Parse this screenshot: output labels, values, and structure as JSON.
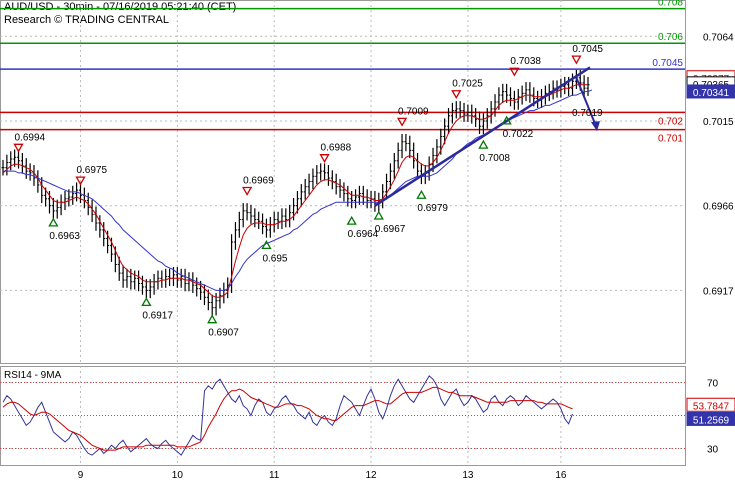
{
  "header": {
    "title": "AUD/USD - 30min - 07/16/2019 05:21:40 (CET)",
    "source": "Research © TRADING CENTRAL"
  },
  "colors": {
    "green_level": "#009900",
    "purple_level": "#3333cc",
    "red_level": "#cc0000",
    "price": "#000000",
    "ma_fast": "#cc0000",
    "ma_slow": "#3333cc",
    "trend": "#2a2a9a",
    "marker_up": "#007700",
    "marker_down": "#cc0000"
  },
  "chart_data": [
    {
      "type": "line",
      "title": "",
      "ylim": [
        0.6875,
        0.7085
      ],
      "x_ticks": [
        "9",
        "10",
        "11",
        "12",
        "13",
        "16"
      ],
      "y_ticks": [
        "0.7064",
        "0.7015",
        "0.6966",
        "0.6917"
      ],
      "levels": [
        {
          "value": 0.708,
          "label": "0.708",
          "color": "green"
        },
        {
          "value": 0.706,
          "label": "0.706",
          "color": "green"
        },
        {
          "value": 0.7045,
          "label": "0.7045",
          "color": "purple"
        },
        {
          "value": 0.702,
          "label": "0.702",
          "color": "red"
        },
        {
          "value": 0.701,
          "label": "0.701",
          "color": "red"
        }
      ],
      "price_tags": [
        {
          "value": 0.70377,
          "label": "0.70377",
          "style": "red"
        },
        {
          "value": 0.70365,
          "label": "0.70365",
          "style": "black"
        },
        {
          "value": 0.70341,
          "label": "0.70341",
          "style": "blue"
        }
      ],
      "annotations_high": [
        {
          "x": 4,
          "y": 0.6994,
          "label": "0.6994"
        },
        {
          "x": 20,
          "y": 0.6975,
          "label": "0.6975"
        },
        {
          "x": 63,
          "y": 0.6969,
          "label": "0.6969"
        },
        {
          "x": 83,
          "y": 0.6988,
          "label": "0.6988"
        },
        {
          "x": 103,
          "y": 0.7009,
          "label": "0.7009"
        },
        {
          "x": 117,
          "y": 0.7025,
          "label": "0.7025"
        },
        {
          "x": 132,
          "y": 0.7038,
          "label": "0.7038"
        },
        {
          "x": 148,
          "y": 0.7045,
          "label": "0.7045"
        }
      ],
      "annotations_low": [
        {
          "x": 13,
          "y": 0.6963,
          "label": "0.6963"
        },
        {
          "x": 37,
          "y": 0.6917,
          "label": "0.6917"
        },
        {
          "x": 54,
          "y": 0.6907,
          "label": "0.6907"
        },
        {
          "x": 68,
          "y": 0.695,
          "label": "0.695"
        },
        {
          "x": 90,
          "y": 0.6964,
          "label": "0.6964"
        },
        {
          "x": 97,
          "y": 0.6967,
          "label": "0.6967"
        },
        {
          "x": 108,
          "y": 0.6979,
          "label": "0.6979"
        },
        {
          "x": 124,
          "y": 0.7008,
          "label": "0.7008"
        },
        {
          "x": 130,
          "y": 0.7022,
          "label": "0.7022"
        }
      ],
      "projection_label": "0.7019",
      "series": [
        {
          "values": [
            0.6988,
            0.6991,
            0.6993,
            0.6994,
            0.6992,
            0.6989,
            0.6986,
            0.6985,
            0.6982,
            0.6978,
            0.6972,
            0.697,
            0.6966,
            0.6963,
            0.6965,
            0.6968,
            0.697,
            0.6971,
            0.6973,
            0.6975,
            0.6972,
            0.6969,
            0.6965,
            0.6961,
            0.6956,
            0.6952,
            0.6947,
            0.6943,
            0.6938,
            0.6932,
            0.6927,
            0.6923,
            0.6925,
            0.6922,
            0.6924,
            0.6921,
            0.6919,
            0.6917,
            0.6919,
            0.6922,
            0.6924,
            0.6923,
            0.6925,
            0.6924,
            0.6926,
            0.6923,
            0.6925,
            0.6921,
            0.6923,
            0.692,
            0.6918,
            0.6916,
            0.6913,
            0.691,
            0.6907,
            0.6911,
            0.6914,
            0.6917,
            0.692,
            0.6945,
            0.6952,
            0.6958,
            0.6963,
            0.6962,
            0.696,
            0.6958,
            0.6957,
            0.6954,
            0.6952,
            0.6955,
            0.6958,
            0.6957,
            0.696,
            0.6958,
            0.6962,
            0.6966,
            0.697,
            0.6974,
            0.6977,
            0.698,
            0.6983,
            0.6985,
            0.6986,
            0.6985,
            0.6982,
            0.698,
            0.6977,
            0.6975,
            0.6973,
            0.697,
            0.6969,
            0.6971,
            0.6973,
            0.6971,
            0.6969,
            0.697,
            0.6967,
            0.6969,
            0.6974,
            0.698,
            0.6986,
            0.6992,
            0.6998,
            0.7003,
            0.7002,
            0.6998,
            0.6992,
            0.6986,
            0.6983,
            0.6985,
            0.699,
            0.6995,
            0.7,
            0.7006,
            0.7012,
            0.7018,
            0.7021,
            0.7022,
            0.7021,
            0.7019,
            0.702,
            0.7018,
            0.7016,
            0.7012,
            0.7015,
            0.7018,
            0.7022,
            0.7026,
            0.703,
            0.7032,
            0.703,
            0.7028,
            0.7026,
            0.7029,
            0.7031,
            0.7033,
            0.703,
            0.7028,
            0.7027,
            0.7029,
            0.7031,
            0.7032,
            0.7034,
            0.7033,
            0.7035,
            0.7036,
            0.7034,
            0.7038,
            0.704,
            0.7037,
            0.7034,
            0.7036
          ]
        },
        {
          "values": [
            0.6985,
            0.6987,
            0.6989,
            0.699,
            0.699,
            0.6989,
            0.6988,
            0.6987,
            0.6985,
            0.6982,
            0.6978,
            0.6975,
            0.6972,
            0.6969,
            0.6968,
            0.6968,
            0.6968,
            0.6969,
            0.697,
            0.6971,
            0.697,
            0.6969,
            0.6967,
            0.6964,
            0.6961,
            0.6957,
            0.6953,
            0.6949,
            0.6945,
            0.694,
            0.6935,
            0.6931,
            0.6929,
            0.6927,
            0.6926,
            0.6925,
            0.6923,
            0.6922,
            0.6922,
            0.6922,
            0.6922,
            0.6923,
            0.6923,
            0.6924,
            0.6924,
            0.6924,
            0.6924,
            0.6923,
            0.6923,
            0.6922,
            0.6921,
            0.692,
            0.6918,
            0.6916,
            0.6914,
            0.6913,
            0.6913,
            0.6914,
            0.6916,
            0.6925,
            0.6934,
            0.6942,
            0.6949,
            0.6953,
            0.6955,
            0.6956,
            0.6956,
            0.6956,
            0.6955,
            0.6955,
            0.6955,
            0.6956,
            0.6957,
            0.6957,
            0.6958,
            0.696,
            0.6963,
            0.6966,
            0.6969,
            0.6972,
            0.6975,
            0.6978,
            0.698,
            0.6981,
            0.6981,
            0.698,
            0.6979,
            0.6978,
            0.6976,
            0.6974,
            0.6972,
            0.6972,
            0.6972,
            0.6971,
            0.6971,
            0.697,
            0.6969,
            0.6969,
            0.697,
            0.6973,
            0.6977,
            0.6981,
            0.6986,
            0.6991,
            0.6994,
            0.6995,
            0.6994,
            0.6992,
            0.699,
            0.6989,
            0.6989,
            0.6991,
            0.6994,
            0.6998,
            0.7003,
            0.7008,
            0.7012,
            0.7015,
            0.7017,
            0.7018,
            0.7018,
            0.7018,
            0.7017,
            0.7016,
            0.7016,
            0.7017,
            0.7018,
            0.7021,
            0.7024,
            0.7026,
            0.7027,
            0.7027,
            0.7027,
            0.7028,
            0.7029,
            0.703,
            0.703,
            0.7029,
            0.7029,
            0.7029,
            0.7029,
            0.703,
            0.7031,
            0.7032,
            0.7033,
            0.7034,
            0.7034,
            0.7035,
            0.7036,
            0.7036,
            0.7036,
            0.7036
          ]
        },
        {
          "values": [
            0.6986,
            0.6986,
            0.6986,
            0.6986,
            0.6985,
            0.6985,
            0.6984,
            0.6984,
            0.6983,
            0.6982,
            0.6981,
            0.698,
            0.6979,
            0.6978,
            0.6977,
            0.6976,
            0.6975,
            0.6974,
            0.6974,
            0.6974,
            0.6973,
            0.6972,
            0.6971,
            0.697,
            0.6968,
            0.6966,
            0.6964,
            0.6962,
            0.696,
            0.6957,
            0.6955,
            0.6952,
            0.695,
            0.6948,
            0.6946,
            0.6944,
            0.6942,
            0.694,
            0.6938,
            0.6936,
            0.6934,
            0.6933,
            0.6931,
            0.693,
            0.6929,
            0.6927,
            0.6926,
            0.6925,
            0.6924,
            0.6923,
            0.6922,
            0.6921,
            0.692,
            0.6919,
            0.6918,
            0.6917,
            0.6917,
            0.6917,
            0.6918,
            0.6921,
            0.6925,
            0.6928,
            0.6932,
            0.6935,
            0.6937,
            0.6939,
            0.6941,
            0.6943,
            0.6944,
            0.6945,
            0.6946,
            0.6947,
            0.6948,
            0.6949,
            0.695,
            0.6952,
            0.6953,
            0.6955,
            0.6957,
            0.6959,
            0.6961,
            0.6962,
            0.6964,
            0.6965,
            0.6966,
            0.6967,
            0.6968,
            0.6968,
            0.6968,
            0.6968,
            0.6968,
            0.6968,
            0.6968,
            0.6968,
            0.6968,
            0.6968,
            0.6968,
            0.6968,
            0.6969,
            0.697,
            0.6972,
            0.6974,
            0.6976,
            0.6978,
            0.698,
            0.6981,
            0.6982,
            0.6983,
            0.6983,
            0.6983,
            0.6983,
            0.6984,
            0.6985,
            0.6987,
            0.6989,
            0.6991,
            0.6993,
            0.6996,
            0.6998,
            0.7,
            0.7002,
            0.7003,
            0.7005,
            0.7006,
            0.7007,
            0.7008,
            0.7009,
            0.7011,
            0.7012,
            0.7014,
            0.7015,
            0.7016,
            0.7017,
            0.7018,
            0.7019,
            0.702,
            0.7021,
            0.7021,
            0.7022,
            0.7023,
            0.7024,
            0.7024,
            0.7025,
            0.7026,
            0.7027,
            0.7028,
            0.7029,
            0.703,
            0.703,
            0.7031,
            0.7032,
            0.7032,
            0.7033
          ]
        }
      ]
    },
    {
      "type": "line",
      "title": "RSI14 - 9MA",
      "ylim": [
        20,
        80
      ],
      "y_ticks": [
        "70",
        "30"
      ],
      "value_tags": [
        {
          "value": 53.7847,
          "label": "53.7847",
          "style": "red"
        },
        {
          "value": 51.2569,
          "label": "51.2569",
          "style": "blue"
        }
      ],
      "series": [
        {
          "values": [
            58,
            62,
            60,
            56,
            52,
            48,
            44,
            46,
            50,
            55,
            58,
            52,
            46,
            40,
            38,
            36,
            34,
            36,
            40,
            38,
            34,
            30,
            27,
            26,
            28,
            30,
            27,
            29,
            32,
            30,
            33,
            35,
            31,
            28,
            30,
            32,
            34,
            36,
            33,
            31,
            30,
            33,
            35,
            32,
            30,
            28,
            26,
            30,
            34,
            38,
            36,
            35,
            65,
            68,
            66,
            70,
            72,
            68,
            64,
            60,
            58,
            62,
            56,
            54,
            50,
            56,
            60,
            58,
            52,
            50,
            54,
            56,
            60,
            62,
            58,
            56,
            52,
            50,
            48,
            52,
            46,
            44,
            48,
            50,
            46,
            44,
            48,
            56,
            62,
            60,
            58,
            54,
            50,
            56,
            62,
            66,
            60,
            52,
            48,
            54,
            62,
            68,
            72,
            68,
            64,
            60,
            58,
            62,
            66,
            70,
            74,
            72,
            68,
            60,
            56,
            60,
            64,
            66,
            60,
            56,
            58,
            62,
            60,
            56,
            52,
            54,
            60,
            62,
            58,
            56,
            60,
            62,
            60,
            56,
            58,
            62,
            60,
            58,
            56,
            54,
            56,
            58,
            60,
            58,
            54,
            48,
            45,
            51
          ]
        },
        {
          "values": [
            55,
            57,
            58,
            58,
            57,
            55,
            53,
            51,
            50,
            51,
            52,
            52,
            51,
            49,
            47,
            45,
            43,
            41,
            40,
            39,
            38,
            36,
            34,
            32,
            31,
            30,
            29,
            29,
            29,
            29,
            30,
            31,
            31,
            31,
            31,
            31,
            31,
            32,
            32,
            32,
            32,
            32,
            32,
            32,
            32,
            31,
            31,
            31,
            31,
            32,
            33,
            34,
            38,
            43,
            47,
            51,
            56,
            60,
            63,
            65,
            65,
            66,
            65,
            63,
            61,
            60,
            59,
            58,
            57,
            56,
            55,
            55,
            56,
            57,
            57,
            57,
            56,
            56,
            55,
            54,
            52,
            50,
            49,
            48,
            48,
            47,
            47,
            49,
            51,
            53,
            55,
            56,
            56,
            56,
            57,
            58,
            59,
            59,
            58,
            57,
            57,
            59,
            61,
            63,
            64,
            64,
            64,
            64,
            64,
            65,
            66,
            67,
            67,
            66,
            65,
            64,
            64,
            63,
            62,
            62,
            62,
            62,
            61,
            60,
            59,
            58,
            58,
            58,
            58,
            58,
            58,
            59,
            59,
            59,
            59,
            59,
            59,
            59,
            58,
            58,
            57,
            57,
            57,
            57,
            57,
            56,
            55,
            54
          ]
        }
      ]
    }
  ]
}
